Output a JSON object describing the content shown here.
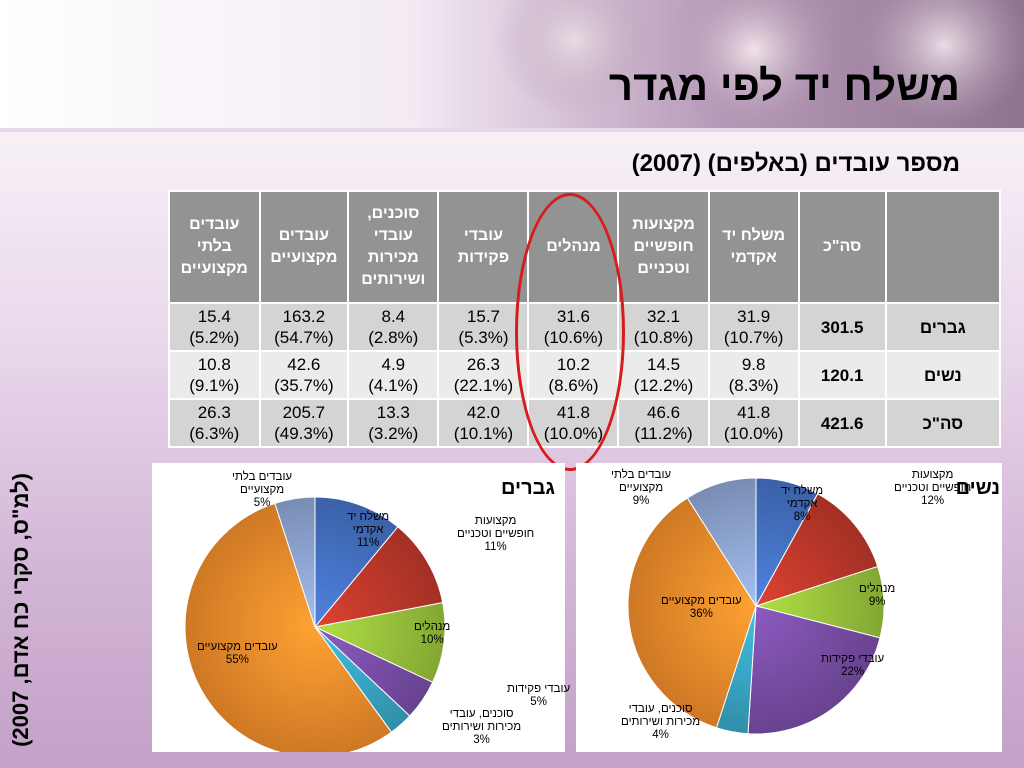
{
  "title": "משלח יד לפי מגדר",
  "subtitle": "מספר עובדים (באלפים) (2007)",
  "source": "(למ\"ס, סקרי כח אדם, 2007)",
  "colors": {
    "academic": "#4572c4",
    "technical": "#c0392b",
    "managers": "#9ac43c",
    "clerical": "#7a4fa8",
    "sales": "#3aa7c7",
    "skilled": "#f28d2c",
    "unskilled": "#8ea6d2",
    "ring": "#d61c1c"
  },
  "table": {
    "headers": [
      "",
      "סה\"כ",
      "משלח יד אקדמי",
      "מקצועות חופשיים וטכניים",
      "מנהלים",
      "עובדי פקידות",
      "סוכנים, עובדי מכירות ושירותים",
      "עובדים מקצועיים",
      "עובדים בלתי מקצועיים"
    ],
    "rows": [
      {
        "label": "גברים",
        "total": "301.5",
        "cells": [
          [
            "31.9",
            "(10.7%)"
          ],
          [
            "32.1",
            "(10.8%)"
          ],
          [
            "31.6",
            "(10.6%)"
          ],
          [
            "15.7",
            "(5.3%)"
          ],
          [
            "8.4",
            "(2.8%)"
          ],
          [
            "163.2",
            "(54.7%)"
          ],
          [
            "15.4",
            "(5.2%)"
          ]
        ]
      },
      {
        "label": "נשים",
        "total": "120.1",
        "cells": [
          [
            "9.8",
            "(8.3%)"
          ],
          [
            "14.5",
            "(12.2%)"
          ],
          [
            "10.2",
            "(8.6%)"
          ],
          [
            "26.3",
            "(22.1%)"
          ],
          [
            "4.9",
            "(4.1%)"
          ],
          [
            "42.6",
            "(35.7%)"
          ],
          [
            "10.8",
            "(9.1%)"
          ]
        ]
      },
      {
        "label": "סה\"כ",
        "total": "421.6",
        "cells": [
          [
            "41.8",
            "(10.0%)"
          ],
          [
            "46.6",
            "(11.2%)"
          ],
          [
            "41.8",
            "(10.0%)"
          ],
          [
            "42.0",
            "(10.1%)"
          ],
          [
            "13.3",
            "(3.2%)"
          ],
          [
            "205.7",
            "(49.3%)"
          ],
          [
            "26.3",
            "(6.3%)"
          ]
        ]
      }
    ]
  },
  "chart_data": [
    {
      "type": "pie",
      "title": "גברים",
      "categories": [
        "משלח יד אקדמי",
        "מקצועות חופשיים וטכניים",
        "מנהלים",
        "עובדי פקידות",
        "סוכנים, עובדי מכירות ושירותים",
        "עובדים מקצועיים",
        "עובדים בלתי מקצועיים"
      ],
      "values": [
        11,
        11,
        10,
        5,
        3,
        55,
        5
      ],
      "labels": [
        [
          "משלח יד",
          "אקדמי",
          "11%"
        ],
        [
          "מקצועות",
          "חופשיים וטכניים",
          "11%"
        ],
        [
          "מנהלים",
          "10%"
        ],
        [
          "עובדי פקידות",
          "5%"
        ],
        [
          "סוכנים, עובדי",
          "מכירות ושירותים",
          "3%"
        ],
        [
          "עובדים מקצועיים",
          "55%"
        ],
        [
          "עובדים בלתי",
          "מקצועיים",
          "5%"
        ]
      ]
    },
    {
      "type": "pie",
      "title": "נשים",
      "categories": [
        "משלח יד אקדמי",
        "מקצועות חופשיים וטכניים",
        "מנהלים",
        "עובדי פקידות",
        "סוכנים, עובדי מכירות ושירותים",
        "עובדים מקצועיים",
        "עובדים בלתי מקצועיים"
      ],
      "values": [
        8,
        12,
        9,
        22,
        4,
        36,
        9
      ],
      "labels": [
        [
          "משלח יד",
          "אקדמי",
          "8%"
        ],
        [
          "מקצועות",
          "חופשיים וטכניים",
          "12%"
        ],
        [
          "מנהלים",
          "9%"
        ],
        [
          "עובדי פקידות",
          "22%"
        ],
        [
          "סוכנים, עובדי",
          "מכירות ושירותים",
          "4%"
        ],
        [
          "עובדים מקצועיים",
          "36%"
        ],
        [
          "עובדים בלתי",
          "מקצועיים",
          "9%"
        ]
      ]
    }
  ]
}
